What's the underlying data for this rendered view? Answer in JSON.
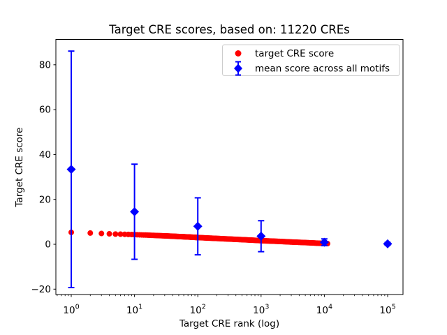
{
  "figure": {
    "background": "#ffffff",
    "spine_color": "#000000",
    "legend_border_color": "#cccccc"
  },
  "chart_data": {
    "type": "scatter",
    "title": "Target CRE scores, based on: 11220 CREs",
    "xlabel": "Target CRE rank (log)",
    "ylabel": "Target CRE score",
    "x_scale": "log",
    "xlim_log10": [
      -0.2428,
      5.2428
    ],
    "ylim": [
      -22.4,
      91.3
    ],
    "grid": false,
    "xticks": {
      "base_label": "10",
      "exponents": [
        "0",
        "1",
        "2",
        "3",
        "4",
        "5"
      ],
      "values": [
        1,
        10,
        100,
        1000,
        10000,
        100000
      ]
    },
    "yticks": {
      "values": [
        -20,
        0,
        20,
        40,
        60,
        80
      ],
      "labels": [
        "−20",
        "0",
        "20",
        "40",
        "60",
        "80"
      ]
    },
    "legend": {
      "position": "upper right",
      "entries": [
        {
          "label": "target CRE score",
          "marker": "circle",
          "color": "#ff0000"
        },
        {
          "label": "mean score across all motifs",
          "marker": "diamond-errorbar",
          "color": "#0000ff"
        }
      ]
    },
    "series": [
      {
        "name": "target CRE score",
        "kind": "dots",
        "color": "#ff0000",
        "marker": "circle",
        "marker_radius_px": 4,
        "rank_min": 1,
        "rank_max": 11220,
        "points_sampled": [
          [
            1,
            5.3
          ],
          [
            2,
            5.0
          ],
          [
            3,
            4.8
          ],
          [
            4,
            4.65
          ],
          [
            5,
            4.55
          ],
          [
            7,
            4.45
          ],
          [
            10,
            4.3
          ],
          [
            15,
            4.1
          ],
          [
            20,
            3.95
          ],
          [
            30,
            3.75
          ],
          [
            50,
            3.45
          ],
          [
            70,
            3.25
          ],
          [
            100,
            3.0
          ],
          [
            150,
            2.75
          ],
          [
            200,
            2.6
          ],
          [
            300,
            2.35
          ],
          [
            500,
            2.05
          ],
          [
            700,
            1.85
          ],
          [
            1000,
            1.6
          ],
          [
            1500,
            1.4
          ],
          [
            2000,
            1.25
          ],
          [
            3000,
            1.0
          ],
          [
            5000,
            0.75
          ],
          [
            7000,
            0.55
          ],
          [
            10000,
            0.35
          ],
          [
            11220,
            0.3
          ]
        ]
      },
      {
        "name": "mean score across all motifs",
        "kind": "errorbar",
        "color": "#0000ff",
        "marker": "diamond",
        "x": [
          1,
          10,
          100,
          1000,
          10000,
          100000
        ],
        "mean": [
          33.4,
          14.5,
          8.0,
          3.6,
          0.9,
          0.2
        ],
        "err": [
          52.7,
          21.2,
          12.7,
          6.9,
          1.5,
          0.6
        ]
      }
    ]
  }
}
